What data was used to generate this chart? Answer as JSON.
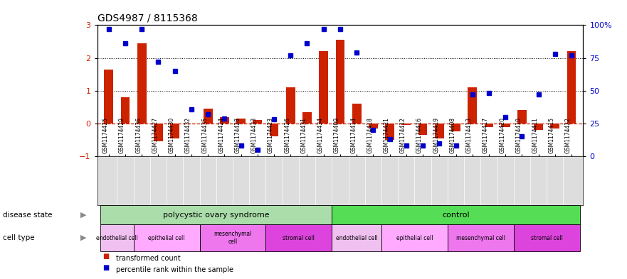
{
  "title": "GDS4987 / 8115368",
  "samples": [
    "GSM1174425",
    "GSM1174429",
    "GSM1174436",
    "GSM1174427",
    "GSM1174430",
    "GSM1174432",
    "GSM1174435",
    "GSM1174424",
    "GSM1174428",
    "GSM1174433",
    "GSM1174423",
    "GSM1174426",
    "GSM1174431",
    "GSM1174434",
    "GSM1174409",
    "GSM1174414",
    "GSM1174418",
    "GSM1174421",
    "GSM1174412",
    "GSM1174416",
    "GSM1174419",
    "GSM1174408",
    "GSM1174413",
    "GSM1174417",
    "GSM1174420",
    "GSM1174410",
    "GSM1174411",
    "GSM1174415",
    "GSM1174422"
  ],
  "bar_values": [
    1.65,
    0.8,
    2.45,
    -0.55,
    -0.45,
    0.0,
    0.45,
    0.2,
    0.15,
    0.1,
    -0.4,
    1.1,
    0.35,
    2.2,
    2.55,
    0.6,
    -0.15,
    -0.5,
    -0.05,
    -0.35,
    -0.45,
    -0.25,
    1.1,
    -0.1,
    -0.1,
    0.4,
    -0.2,
    -0.15,
    2.2
  ],
  "percentile_values": [
    97,
    86,
    97,
    72,
    65,
    36,
    32,
    29,
    8,
    5,
    28,
    77,
    86,
    97,
    97,
    79,
    20,
    13,
    8,
    8,
    10,
    8,
    47,
    48,
    30,
    15,
    47,
    78,
    77
  ],
  "bar_color": "#cc2200",
  "dot_color": "#0000cc",
  "dashed_line_color": "#cc2200",
  "ylim_left": [
    -1,
    3
  ],
  "ylim_right": [
    0,
    100
  ],
  "yticks_left": [
    -1,
    0,
    1,
    2,
    3
  ],
  "yticks_right": [
    0,
    25,
    50,
    75,
    100
  ],
  "ytick_labels_right": [
    "0",
    "25",
    "50",
    "75",
    "100%"
  ],
  "disease_state_groups": [
    {
      "label": "polycystic ovary syndrome",
      "start": 0,
      "end": 13,
      "color": "#aaddaa"
    },
    {
      "label": "control",
      "start": 14,
      "end": 28,
      "color": "#55dd55"
    }
  ],
  "cell_type_groups": [
    {
      "label": "endothelial cell",
      "start": 0,
      "end": 1,
      "color": "#f0c0f0"
    },
    {
      "label": "epithelial cell",
      "start": 2,
      "end": 5,
      "color": "#ffaaff"
    },
    {
      "label": "mesenchymal\ncell",
      "start": 6,
      "end": 9,
      "color": "#ee77ee"
    },
    {
      "label": "stromal cell",
      "start": 10,
      "end": 13,
      "color": "#dd44dd"
    },
    {
      "label": "endothelial cell",
      "start": 14,
      "end": 16,
      "color": "#f0c0f0"
    },
    {
      "label": "epithelial cell",
      "start": 17,
      "end": 20,
      "color": "#ffaaff"
    },
    {
      "label": "mesenchymal cell",
      "start": 21,
      "end": 24,
      "color": "#ee77ee"
    },
    {
      "label": "stromal cell",
      "start": 25,
      "end": 28,
      "color": "#dd44dd"
    }
  ],
  "bar_width": 0.55,
  "dot_size": 4,
  "label_disease_state": "disease state",
  "label_cell_type": "cell type",
  "legend_bar_label": "transformed count",
  "legend_dot_label": "percentile rank within the sample",
  "xtick_bg_color": "#dddddd",
  "arrow_color": "#888888"
}
